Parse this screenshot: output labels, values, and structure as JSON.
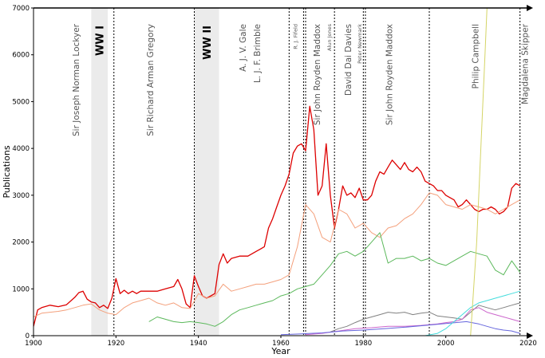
{
  "chart_data": {
    "type": "line",
    "title": "",
    "xlabel": "Year",
    "ylabel": "Publications",
    "xlim": [
      1900,
      2020
    ],
    "ylim": [
      0,
      7000
    ],
    "x_ticks": [
      1900,
      1920,
      1940,
      1960,
      1980,
      2000,
      2020
    ],
    "y_ticks": [
      0,
      1000,
      2000,
      3000,
      4000,
      5000,
      6000,
      7000
    ],
    "grid": false,
    "legend": "none",
    "war_periods": [
      {
        "label": "WW I",
        "start": 1914,
        "end": 1918
      },
      {
        "label": "WW II",
        "start": 1939,
        "end": 1945
      }
    ],
    "editors": [
      {
        "label": "Sir Joseph Norman Lockyer",
        "year": 1919.5,
        "size": "large"
      },
      {
        "label": "Sir Richard Arman Gregory",
        "year": 1939,
        "size": "large"
      },
      {
        "label": "A. J. V. Gale",
        "year": 1962,
        "size": "large",
        "line2": "L. J. F. Brimble"
      },
      {
        "label": "R. J. Fifeld",
        "year": 1965.5,
        "size": "small"
      },
      {
        "label": "Sir John Royden Maddox",
        "year": 1966,
        "size": "large"
      },
      {
        "label": "Alun Jones",
        "year": 1973,
        "size": "small"
      },
      {
        "label": "David Dai Davies",
        "year": 1980,
        "size": "large"
      },
      {
        "label": "Peter Newmark",
        "year": 1980.5,
        "size": "small"
      },
      {
        "label": "Sir John Royden Maddox",
        "year": 1996,
        "size": "large"
      },
      {
        "label": "Philip Campbell",
        "year": 2018,
        "size": "large"
      },
      {
        "label": "Magdalena Skipper",
        "year": 2018,
        "size": "large"
      }
    ],
    "series": [
      {
        "color": "#dd0000",
        "x": [
          1900,
          1901,
          1902,
          1904,
          1906,
          1908,
          1910,
          1911,
          1912,
          1913,
          1914,
          1915,
          1916,
          1917,
          1918,
          1919,
          1920,
          1921,
          1922,
          1923,
          1924,
          1925,
          1926,
          1928,
          1930,
          1932,
          1934,
          1935,
          1936,
          1937,
          1938,
          1939,
          1940,
          1941,
          1942,
          1944,
          1945,
          1946,
          1947,
          1948,
          1950,
          1952,
          1954,
          1955,
          1956,
          1957,
          1958,
          1959,
          1960,
          1961,
          1962,
          1963,
          1964,
          1965,
          1966,
          1967,
          1968,
          1969,
          1970,
          1971,
          1972,
          1973,
          1974,
          1975,
          1976,
          1977,
          1978,
          1979,
          1980,
          1981,
          1982,
          1983,
          1984,
          1985,
          1986,
          1987,
          1988,
          1989,
          1990,
          1991,
          1992,
          1993,
          1994,
          1995,
          1996,
          1997,
          1998,
          1999,
          2000,
          2001,
          2002,
          2003,
          2004,
          2005,
          2006,
          2007,
          2008,
          2009,
          2010,
          2011,
          2012,
          2013,
          2014,
          2015,
          2016,
          2017,
          2018
        ],
        "y": [
          200,
          550,
          600,
          650,
          620,
          660,
          820,
          920,
          950,
          780,
          720,
          700,
          600,
          650,
          580,
          800,
          1220,
          900,
          970,
          900,
          950,
          900,
          950,
          950,
          950,
          1000,
          1050,
          1200,
          1000,
          680,
          600,
          1280,
          1050,
          850,
          800,
          900,
          1520,
          1750,
          1550,
          1650,
          1700,
          1700,
          1800,
          1850,
          1900,
          2300,
          2500,
          2750,
          3000,
          3200,
          3450,
          3900,
          4050,
          4100,
          3950,
          4900,
          4400,
          3000,
          3200,
          4100,
          3000,
          2300,
          2700,
          3200,
          3000,
          3050,
          2950,
          3150,
          2900,
          2900,
          3000,
          3300,
          3500,
          3450,
          3600,
          3750,
          3650,
          3550,
          3700,
          3550,
          3500,
          3600,
          3500,
          3300,
          3250,
          3200,
          3100,
          3100,
          3000,
          2950,
          2900,
          2750,
          2800,
          2900,
          2800,
          2700,
          2650,
          2700,
          2700,
          2750,
          2700,
          2600,
          2650,
          2750,
          3150,
          3250,
          3200
        ]
      },
      {
        "color": "#f4a07c",
        "x": [
          1900,
          1902,
          1904,
          1906,
          1908,
          1910,
          1912,
          1914,
          1916,
          1918,
          1920,
          1922,
          1924,
          1926,
          1928,
          1930,
          1932,
          1934,
          1936,
          1938,
          1940,
          1942,
          1944,
          1946,
          1948,
          1950,
          1952,
          1954,
          1956,
          1958,
          1960,
          1962,
          1964,
          1966,
          1968,
          1970,
          1972,
          1974,
          1976,
          1978,
          1980,
          1982,
          1984,
          1986,
          1988,
          1990,
          1992,
          1994,
          1996,
          1998,
          2000,
          2002,
          2004,
          2006,
          2008,
          2010,
          2012,
          2014,
          2016,
          2018
        ],
        "y": [
          400,
          480,
          500,
          520,
          550,
          600,
          650,
          680,
          550,
          480,
          450,
          600,
          700,
          750,
          800,
          700,
          650,
          700,
          600,
          580,
          900,
          800,
          850,
          1100,
          950,
          1000,
          1050,
          1100,
          1100,
          1150,
          1200,
          1300,
          1900,
          2800,
          2600,
          2100,
          2000,
          2700,
          2600,
          2300,
          2400,
          2200,
          2100,
          2300,
          2350,
          2500,
          2600,
          2800,
          3050,
          3000,
          2800,
          2750,
          2700,
          2800,
          2750,
          2700,
          2600,
          2700,
          2800,
          2900
        ]
      },
      {
        "color": "#5bb85b",
        "x": [
          1928,
          1930,
          1932,
          1934,
          1936,
          1938,
          1940,
          1942,
          1944,
          1946,
          1948,
          1950,
          1952,
          1954,
          1956,
          1958,
          1960,
          1962,
          1964,
          1966,
          1968,
          1970,
          1972,
          1974,
          1976,
          1978,
          1980,
          1982,
          1984,
          1986,
          1988,
          1990,
          1992,
          1994,
          1996,
          1998,
          2000,
          2002,
          2004,
          2006,
          2008,
          2010,
          2012,
          2014,
          2016,
          2018
        ],
        "y": [
          300,
          400,
          350,
          300,
          280,
          300,
          280,
          250,
          200,
          300,
          450,
          550,
          600,
          650,
          700,
          750,
          850,
          900,
          1000,
          1050,
          1100,
          1300,
          1500,
          1750,
          1800,
          1700,
          1800,
          2000,
          2200,
          1550,
          1650,
          1650,
          1700,
          1600,
          1650,
          1550,
          1500,
          1600,
          1700,
          1800,
          1750,
          1700,
          1400,
          1300,
          1600,
          1350
        ]
      },
      {
        "color": "#808080",
        "x": [
          1972,
          1974,
          1976,
          1978,
          1980,
          1982,
          1984,
          1986,
          1988,
          1990,
          1992,
          1994,
          1996,
          1998,
          2000,
          2002,
          2004,
          2006,
          2008,
          2010,
          2012,
          2014,
          2016,
          2018
        ],
        "y": [
          80,
          150,
          200,
          280,
          350,
          400,
          450,
          500,
          480,
          500,
          450,
          480,
          500,
          420,
          400,
          380,
          350,
          500,
          650,
          600,
          550,
          600,
          650,
          700
        ]
      },
      {
        "color": "#cc66cc",
        "x": [
          1966,
          1970,
          1974,
          1978,
          1982,
          1986,
          1990,
          1994,
          1998,
          2000,
          2002,
          2004,
          2006,
          2008,
          2010,
          2012,
          2014,
          2016,
          2018
        ],
        "y": [
          20,
          50,
          100,
          150,
          170,
          200,
          200,
          220,
          250,
          280,
          300,
          350,
          550,
          600,
          500,
          450,
          400,
          350,
          300
        ]
      },
      {
        "color": "#6666dd",
        "x": [
          1960,
          1965,
          1970,
          1975,
          1980,
          1985,
          1990,
          1995,
          2000,
          2005,
          2008,
          2010,
          2012,
          2014,
          2016,
          2018
        ],
        "y": [
          20,
          40,
          60,
          100,
          120,
          150,
          180,
          220,
          260,
          300,
          250,
          200,
          150,
          120,
          100,
          50
        ]
      },
      {
        "color": "#44dddd",
        "x": [
          1995,
          1998,
          2000,
          2002,
          2004,
          2006,
          2008,
          2010,
          2012,
          2014,
          2016,
          2018
        ],
        "y": [
          0,
          50,
          150,
          300,
          450,
          600,
          700,
          750,
          800,
          850,
          900,
          950
        ]
      },
      {
        "color": "#d4d466",
        "x": [
          2006,
          2007.5,
          2008.5,
          2009.5,
          2010
        ],
        "y": [
          0,
          2000,
          4000,
          6000,
          7000
        ]
      }
    ]
  }
}
